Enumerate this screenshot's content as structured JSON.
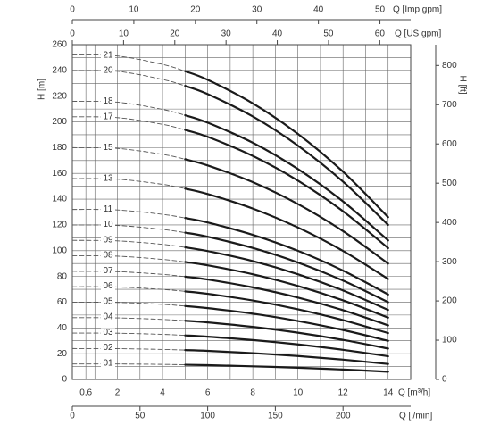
{
  "chart_data": {
    "type": "line",
    "x_label": "Q [m³/h]",
    "y_label": "H [m]",
    "y2_label": "H [ft]",
    "x": [
      0,
      2,
      4,
      5,
      6,
      8,
      10,
      12,
      14
    ],
    "xlim": [
      0,
      15
    ],
    "xticks": [
      {
        "value": 0.6,
        "label": "0,6"
      },
      2,
      4,
      6,
      8,
      10,
      12,
      14
    ],
    "x_minor_ticks": [
      1,
      3,
      5,
      7,
      9,
      11,
      13,
      15
    ],
    "ylim": [
      0,
      260
    ],
    "yticks": [
      0,
      20,
      40,
      60,
      80,
      100,
      120,
      140,
      160,
      180,
      200,
      220,
      240,
      260
    ],
    "y_minor_ticks": [
      10,
      30,
      50,
      70,
      90,
      110,
      130,
      150,
      170,
      190,
      210,
      230,
      250
    ],
    "y2lim": [
      0,
      853
    ],
    "y2ticks": [
      0,
      100,
      200,
      300,
      400,
      500,
      600,
      700,
      800
    ],
    "top_axes": [
      {
        "label": "Q [Imp gpm]",
        "lim": [
          0,
          55
        ],
        "ticks": [
          0,
          10,
          20,
          30,
          40,
          50
        ]
      },
      {
        "label": "Q [US gpm]",
        "lim": [
          0,
          66.04
        ],
        "ticks": [
          0,
          10,
          20,
          30,
          40,
          50,
          60
        ]
      }
    ],
    "bottom_axis": {
      "label": "Q [l/min]",
      "lim": [
        0,
        250
      ],
      "ticks": [
        0,
        50,
        100,
        150,
        200
      ]
    },
    "grid": true,
    "dashed_below_x": 5,
    "color": "#1a1a1a",
    "series": [
      {
        "name": "01",
        "values": [
          12,
          12.0,
          11.7,
          11.4,
          11.1,
          10.2,
          9.1,
          7.7,
          6.0
        ]
      },
      {
        "name": "02",
        "values": [
          24,
          23.9,
          23.3,
          22.8,
          22.2,
          20.4,
          18.2,
          15.4,
          12.0
        ]
      },
      {
        "name": "03",
        "values": [
          36,
          35.9,
          35.0,
          34.2,
          33.2,
          30.6,
          27.2,
          23.0,
          18.0
        ]
      },
      {
        "name": "04",
        "values": [
          48,
          47.8,
          46.6,
          45.6,
          44.3,
          40.8,
          36.3,
          30.7,
          24.0
        ]
      },
      {
        "name": "05",
        "values": [
          60,
          59.8,
          58.3,
          57.0,
          55.4,
          51.1,
          45.4,
          38.4,
          30.0
        ]
      },
      {
        "name": "06",
        "values": [
          72,
          71.8,
          69.9,
          68.4,
          66.5,
          61.3,
          54.5,
          46.1,
          36.0
        ]
      },
      {
        "name": "07",
        "values": [
          84,
          83.7,
          81.6,
          79.8,
          77.6,
          71.5,
          63.6,
          53.8,
          42.0
        ]
      },
      {
        "name": "08",
        "values": [
          96,
          95.7,
          93.2,
          91.2,
          88.6,
          81.7,
          72.6,
          61.4,
          48.0
        ]
      },
      {
        "name": "09",
        "values": [
          108,
          107.6,
          104.9,
          102.6,
          99.7,
          91.9,
          81.7,
          69.1,
          54.0
        ]
      },
      {
        "name": "10",
        "values": [
          120,
          119.6,
          116.5,
          114.0,
          110.8,
          102.1,
          90.8,
          76.8,
          60.0
        ]
      },
      {
        "name": "11",
        "values": [
          132,
          131.6,
          128.2,
          125.4,
          121.9,
          112.3,
          99.9,
          84.5,
          66.0
        ]
      },
      {
        "name": "13",
        "values": [
          156,
          155.5,
          151.5,
          148.2,
          144.0,
          132.7,
          118.0,
          99.8,
          78.0
        ]
      },
      {
        "name": "15",
        "values": [
          180,
          179.4,
          174.8,
          171.0,
          166.2,
          153.2,
          136.2,
          115.2,
          90.0
        ]
      },
      {
        "name": "17",
        "values": [
          204,
          203.3,
          198.1,
          193.8,
          188.4,
          173.6,
          154.4,
          130.6,
          102.0
        ]
      },
      {
        "name": "18",
        "values": [
          216,
          215.3,
          209.7,
          205.2,
          199.4,
          183.8,
          163.4,
          138.2,
          108.0
        ]
      },
      {
        "name": "20",
        "values": [
          240,
          239.3,
          233.0,
          228.0,
          221.6,
          204.2,
          181.6,
          153.6,
          120.0
        ]
      },
      {
        "name": "21",
        "values": [
          252,
          251.2,
          244.7,
          239.4,
          232.7,
          214.4,
          190.7,
          161.3,
          126.0
        ]
      }
    ]
  }
}
